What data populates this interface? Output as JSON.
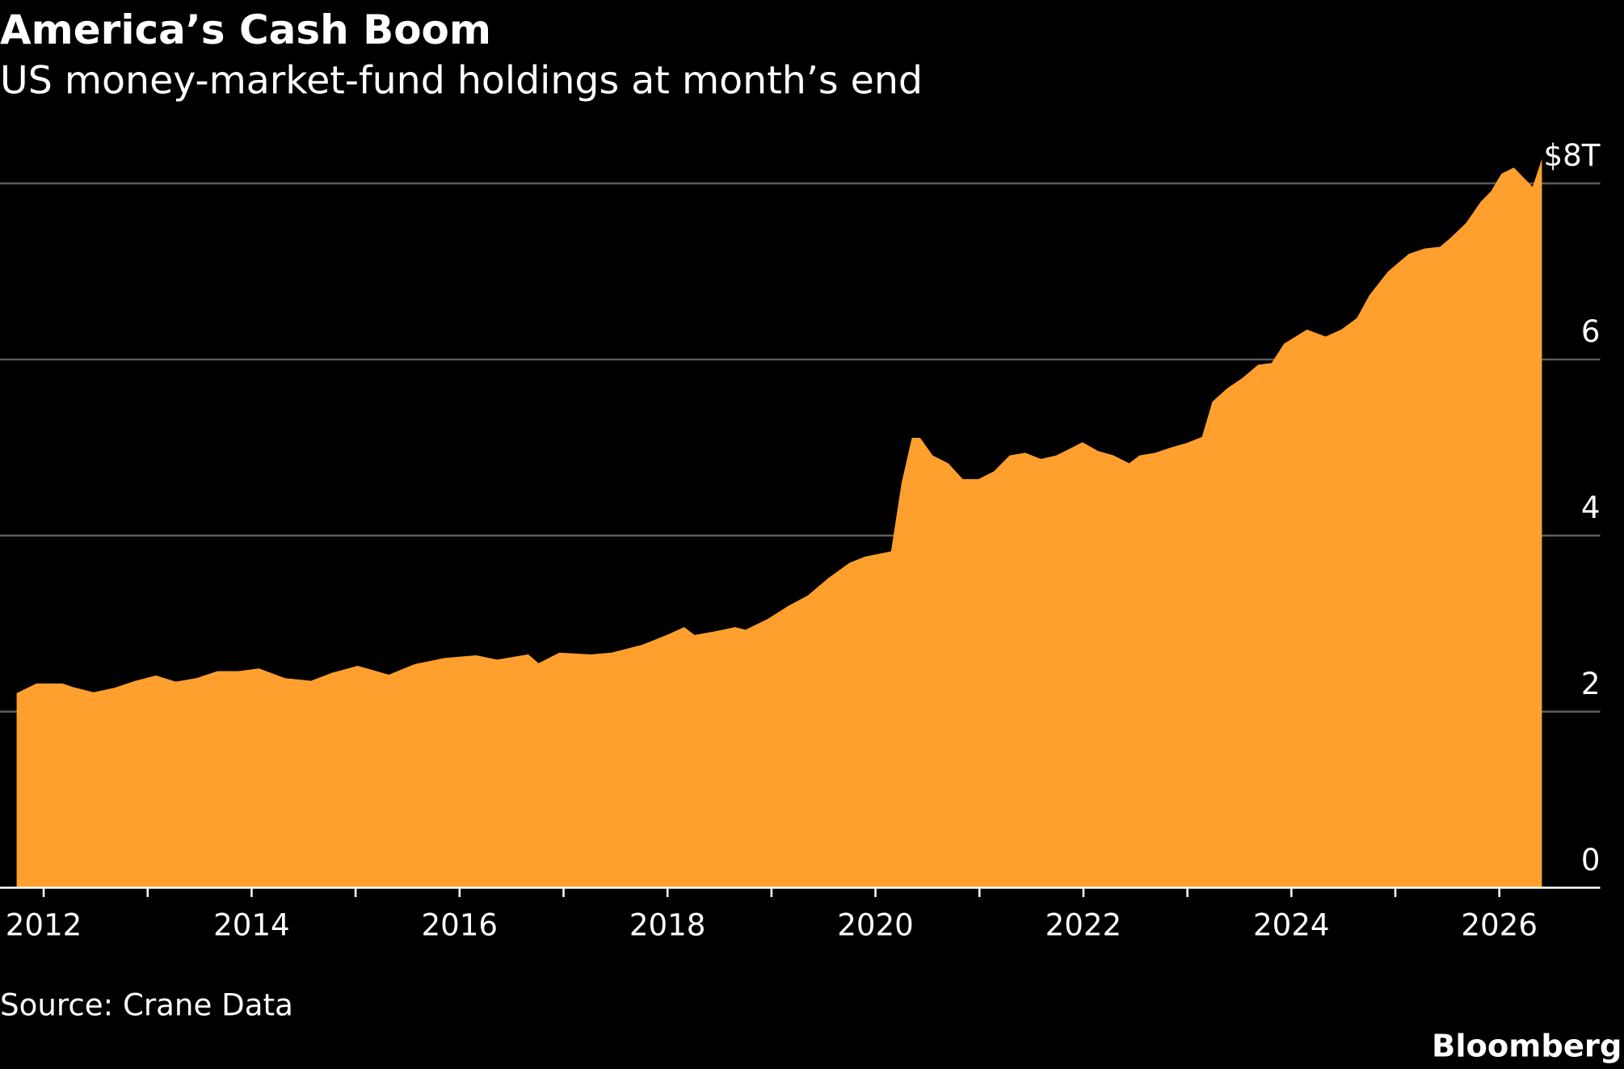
{
  "chart_data": {
    "type": "area",
    "title": "America’s Cash Boom",
    "subtitle": "US money-market-fund holdings at month’s end",
    "source": "Source: Crane Data",
    "brand": "Bloomberg",
    "color": "#ffa02e",
    "grid": true,
    "x": [
      2011.74,
      2011.93,
      2012.18,
      2012.28,
      2012.48,
      2012.68,
      2012.88,
      2013.08,
      2013.27,
      2013.47,
      2013.67,
      2013.87,
      2014.07,
      2014.32,
      2014.57,
      2014.77,
      2015.02,
      2015.32,
      2015.57,
      2015.86,
      2016.16,
      2016.36,
      2016.66,
      2016.76,
      2016.96,
      2017.26,
      2017.46,
      2017.76,
      2018.01,
      2018.16,
      2018.26,
      2018.45,
      2018.65,
      2018.75,
      2018.96,
      2019.16,
      2019.35,
      2019.55,
      2019.75,
      2019.9,
      2020.15,
      2020.25,
      2020.35,
      2020.43,
      2020.55,
      2020.7,
      2020.84,
      2020.99,
      2021.14,
      2021.29,
      2021.44,
      2021.59,
      2021.74,
      2021.89,
      2021.99,
      2022.14,
      2022.29,
      2022.44,
      2022.54,
      2022.69,
      2022.84,
      2022.99,
      2023.14,
      2023.24,
      2023.38,
      2023.53,
      2023.68,
      2023.81,
      2023.93,
      2024.15,
      2024.33,
      2024.48,
      2024.63,
      2024.75,
      2024.93,
      2025.13,
      2025.28,
      2025.43,
      2025.53,
      2025.68,
      2025.82,
      2025.92,
      2026.02,
      2026.14,
      2026.32,
      2026.41
    ],
    "values": [
      2.21,
      2.32,
      2.32,
      2.28,
      2.22,
      2.27,
      2.35,
      2.41,
      2.34,
      2.38,
      2.46,
      2.46,
      2.49,
      2.38,
      2.35,
      2.44,
      2.52,
      2.42,
      2.54,
      2.61,
      2.64,
      2.59,
      2.65,
      2.55,
      2.67,
      2.65,
      2.67,
      2.76,
      2.88,
      2.96,
      2.87,
      2.91,
      2.96,
      2.93,
      3.05,
      3.2,
      3.32,
      3.52,
      3.69,
      3.76,
      3.82,
      4.59,
      5.11,
      5.11,
      4.91,
      4.82,
      4.64,
      4.64,
      4.73,
      4.91,
      4.94,
      4.87,
      4.91,
      5.0,
      5.06,
      4.96,
      4.91,
      4.82,
      4.91,
      4.94,
      5.0,
      5.05,
      5.12,
      5.52,
      5.67,
      5.79,
      5.94,
      5.96,
      6.18,
      6.34,
      6.26,
      6.34,
      6.47,
      6.73,
      7.0,
      7.2,
      7.26,
      7.28,
      7.38,
      7.55,
      7.79,
      7.91,
      8.11,
      8.18,
      7.96,
      8.28
    ],
    "xlim": [
      2011.58,
      2026.97
    ],
    "xticks": [
      2012,
      2014,
      2016,
      2018,
      2020,
      2022,
      2024,
      2026
    ],
    "minor_xticks": [
      2013,
      2015,
      2017,
      2019,
      2021,
      2023,
      2025
    ],
    "ylim": [
      0,
      8.3
    ],
    "yticks": [
      0,
      2,
      4,
      6,
      {
        "value": 8,
        "label": "$8T"
      }
    ]
  }
}
